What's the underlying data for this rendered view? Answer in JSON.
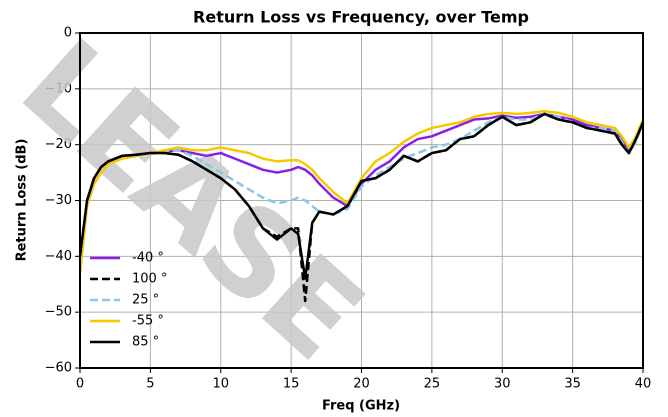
{
  "chart_data": {
    "type": "line",
    "title": "Return Loss vs Frequency, over Temp",
    "watermark": "LEASE",
    "x_label": "Freq (GHz)",
    "y_label": "Return Loss (dB)",
    "x": [
      0,
      0.5,
      1,
      1.5,
      2,
      3,
      4,
      5,
      6,
      7,
      8,
      9,
      10,
      11,
      12,
      13,
      14,
      15,
      15.5,
      16,
      16.5,
      17,
      18,
      19,
      20,
      21,
      22,
      23,
      24,
      25,
      26,
      27,
      28,
      29,
      30,
      31,
      32,
      33,
      34,
      35,
      36,
      37,
      38,
      38.5,
      39,
      39.5,
      40
    ],
    "series": [
      {
        "name": "-40 °",
        "color": "#8a1ee6",
        "dash": false,
        "values": [
          -41,
          -30,
          -26,
          -24,
          -23,
          -22,
          -21.8,
          -21.5,
          -21.2,
          -21,
          -21.5,
          -22,
          -21.5,
          -22.5,
          -23.5,
          -24.5,
          -25,
          -24.5,
          -24,
          -24.5,
          -25.5,
          -27,
          -29.5,
          -31,
          -27,
          -24.5,
          -23,
          -20.5,
          -19,
          -18.5,
          -17.5,
          -16.5,
          -15.5,
          -15.3,
          -14.8,
          -15.2,
          -15,
          -14.5,
          -15,
          -15.5,
          -16.5,
          -17,
          -17.5,
          -19,
          -21,
          -19,
          -16
        ]
      },
      {
        "name": "100 °",
        "color": "#000000",
        "dash": true,
        "values": [
          -40,
          -30,
          -26,
          -24,
          -23,
          -22,
          -21.8,
          -21.5,
          -21.5,
          -21.8,
          -23,
          -24.5,
          -26,
          -28,
          -31,
          -35,
          -36.5,
          -35,
          -35,
          -48,
          -34,
          -32,
          -32.5,
          -31,
          -26.5,
          -26,
          -24.5,
          -22,
          -23,
          -21.5,
          -21,
          -19,
          -18.5,
          -16.5,
          -15,
          -16.5,
          -16,
          -14.5,
          -15.5,
          -16,
          -17,
          -17.5,
          -18,
          -20,
          -21.5,
          -19,
          -16
        ]
      },
      {
        "name": "25 °",
        "color": "#87c8e6",
        "dash": true,
        "values": [
          -40,
          -30,
          -26,
          -24,
          -23,
          -22,
          -21.8,
          -21.5,
          -21.2,
          -21,
          -22,
          -23.5,
          -25,
          -26.5,
          -28,
          -29.5,
          -30.5,
          -30,
          -29.5,
          -30,
          -31,
          -32,
          -32.5,
          -31.5,
          -27.5,
          -25.5,
          -24,
          -22.5,
          -21.5,
          -20.5,
          -20,
          -19,
          -17.5,
          -16,
          -15,
          -15.5,
          -15.5,
          -14.5,
          -15,
          -16,
          -17,
          -17,
          -17.5,
          -19.5,
          -21.5,
          -19.5,
          -16
        ]
      },
      {
        "name": "-55 °",
        "color": "#f5c800",
        "dash": false,
        "values": [
          -43,
          -31,
          -27,
          -25,
          -23.5,
          -22.5,
          -22,
          -21.5,
          -21,
          -20.5,
          -21,
          -21,
          -20.5,
          -21,
          -21.5,
          -22.5,
          -23,
          -22.8,
          -22.8,
          -23.5,
          -24.5,
          -26,
          -28.5,
          -30.5,
          -26,
          -23,
          -21.5,
          -19.5,
          -18,
          -17,
          -16.5,
          -16,
          -15,
          -14.5,
          -14.3,
          -14.5,
          -14.3,
          -14,
          -14.3,
          -15,
          -16,
          -16.5,
          -17,
          -18.5,
          -20.5,
          -18.5,
          -15.5
        ]
      },
      {
        "name": "85 °",
        "color": "#000000",
        "dash": false,
        "values": [
          -40,
          -30,
          -26,
          -24,
          -23,
          -22,
          -21.8,
          -21.5,
          -21.5,
          -21.8,
          -23,
          -24.5,
          -26,
          -28,
          -31,
          -35,
          -37,
          -35,
          -36,
          -44,
          -34,
          -32,
          -32.5,
          -31,
          -26.5,
          -26,
          -24.5,
          -22,
          -23,
          -21.5,
          -21,
          -19,
          -18.5,
          -16.5,
          -15,
          -16.5,
          -16,
          -14.5,
          -15.5,
          -16,
          -17,
          -17.5,
          -18,
          -20,
          -21.5,
          -19,
          -16
        ]
      }
    ],
    "xlim": [
      0,
      40
    ],
    "ylim": [
      -60,
      0
    ],
    "xticks": [
      0,
      5,
      10,
      15,
      20,
      25,
      30,
      35,
      40
    ],
    "yticks": [
      {
        "value": -60,
        "label": "−60"
      },
      {
        "value": -50,
        "label": "−50"
      },
      {
        "value": -40,
        "label": "−40"
      },
      {
        "value": -30,
        "label": "−30"
      },
      {
        "value": -20,
        "label": "−20"
      },
      {
        "value": -10,
        "label": "−10"
      },
      0
    ],
    "grid": true,
    "legend": "lower left"
  }
}
